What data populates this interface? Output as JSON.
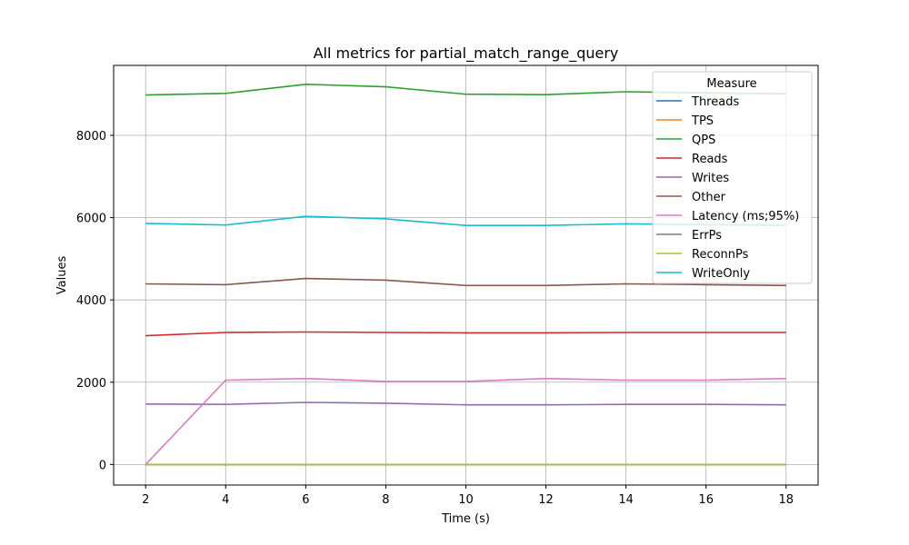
{
  "chart_data": {
    "type": "line",
    "title": "All metrics for partial_match_range_query",
    "xlabel": "Time (s)",
    "ylabel": "Values",
    "x": [
      2,
      4,
      6,
      8,
      10,
      12,
      14,
      16,
      18
    ],
    "xlim": [
      1.2,
      18.8
    ],
    "ylim": [
      -500,
      9700
    ],
    "xticks": [
      2,
      4,
      6,
      8,
      10,
      12,
      14,
      16,
      18
    ],
    "yticks": [
      0,
      2000,
      4000,
      6000,
      8000
    ],
    "grid": true,
    "legend": {
      "title": "Measure",
      "placement": "top-right"
    },
    "series": [
      {
        "name": "Threads",
        "color": "#1f77b4",
        "values": [
          0,
          0,
          0,
          0,
          0,
          0,
          0,
          0,
          0
        ]
      },
      {
        "name": "TPS",
        "color": "#ff7f0e",
        "values": [
          0,
          0,
          0,
          0,
          0,
          0,
          0,
          0,
          0
        ]
      },
      {
        "name": "QPS",
        "color": "#2ca02c",
        "values": [
          8980,
          9020,
          9240,
          9180,
          9000,
          8990,
          9060,
          9030,
          9010
        ]
      },
      {
        "name": "Reads",
        "color": "#d62728",
        "values": [
          3130,
          3210,
          3220,
          3210,
          3200,
          3200,
          3210,
          3210,
          3210
        ]
      },
      {
        "name": "Writes",
        "color": "#9467bd",
        "values": [
          1470,
          1460,
          1510,
          1490,
          1450,
          1450,
          1460,
          1460,
          1450
        ]
      },
      {
        "name": "Other",
        "color": "#8c564b",
        "values": [
          4390,
          4370,
          4520,
          4480,
          4350,
          4350,
          4390,
          4370,
          4350
        ]
      },
      {
        "name": "Latency (ms;95%)",
        "color": "#e377c2",
        "values": [
          0,
          2050,
          2090,
          2020,
          2020,
          2090,
          2050,
          2050,
          2090
        ]
      },
      {
        "name": "ErrPs",
        "color": "#7f7f7f",
        "values": [
          0,
          0,
          0,
          0,
          0,
          0,
          0,
          0,
          0
        ]
      },
      {
        "name": "ReconnPs",
        "color": "#bcbd22",
        "values": [
          0,
          0,
          0,
          0,
          0,
          0,
          0,
          0,
          0
        ]
      },
      {
        "name": "WriteOnly",
        "color": "#17becf",
        "values": [
          5860,
          5820,
          6030,
          5970,
          5810,
          5810,
          5850,
          5830,
          5810
        ]
      }
    ]
  }
}
